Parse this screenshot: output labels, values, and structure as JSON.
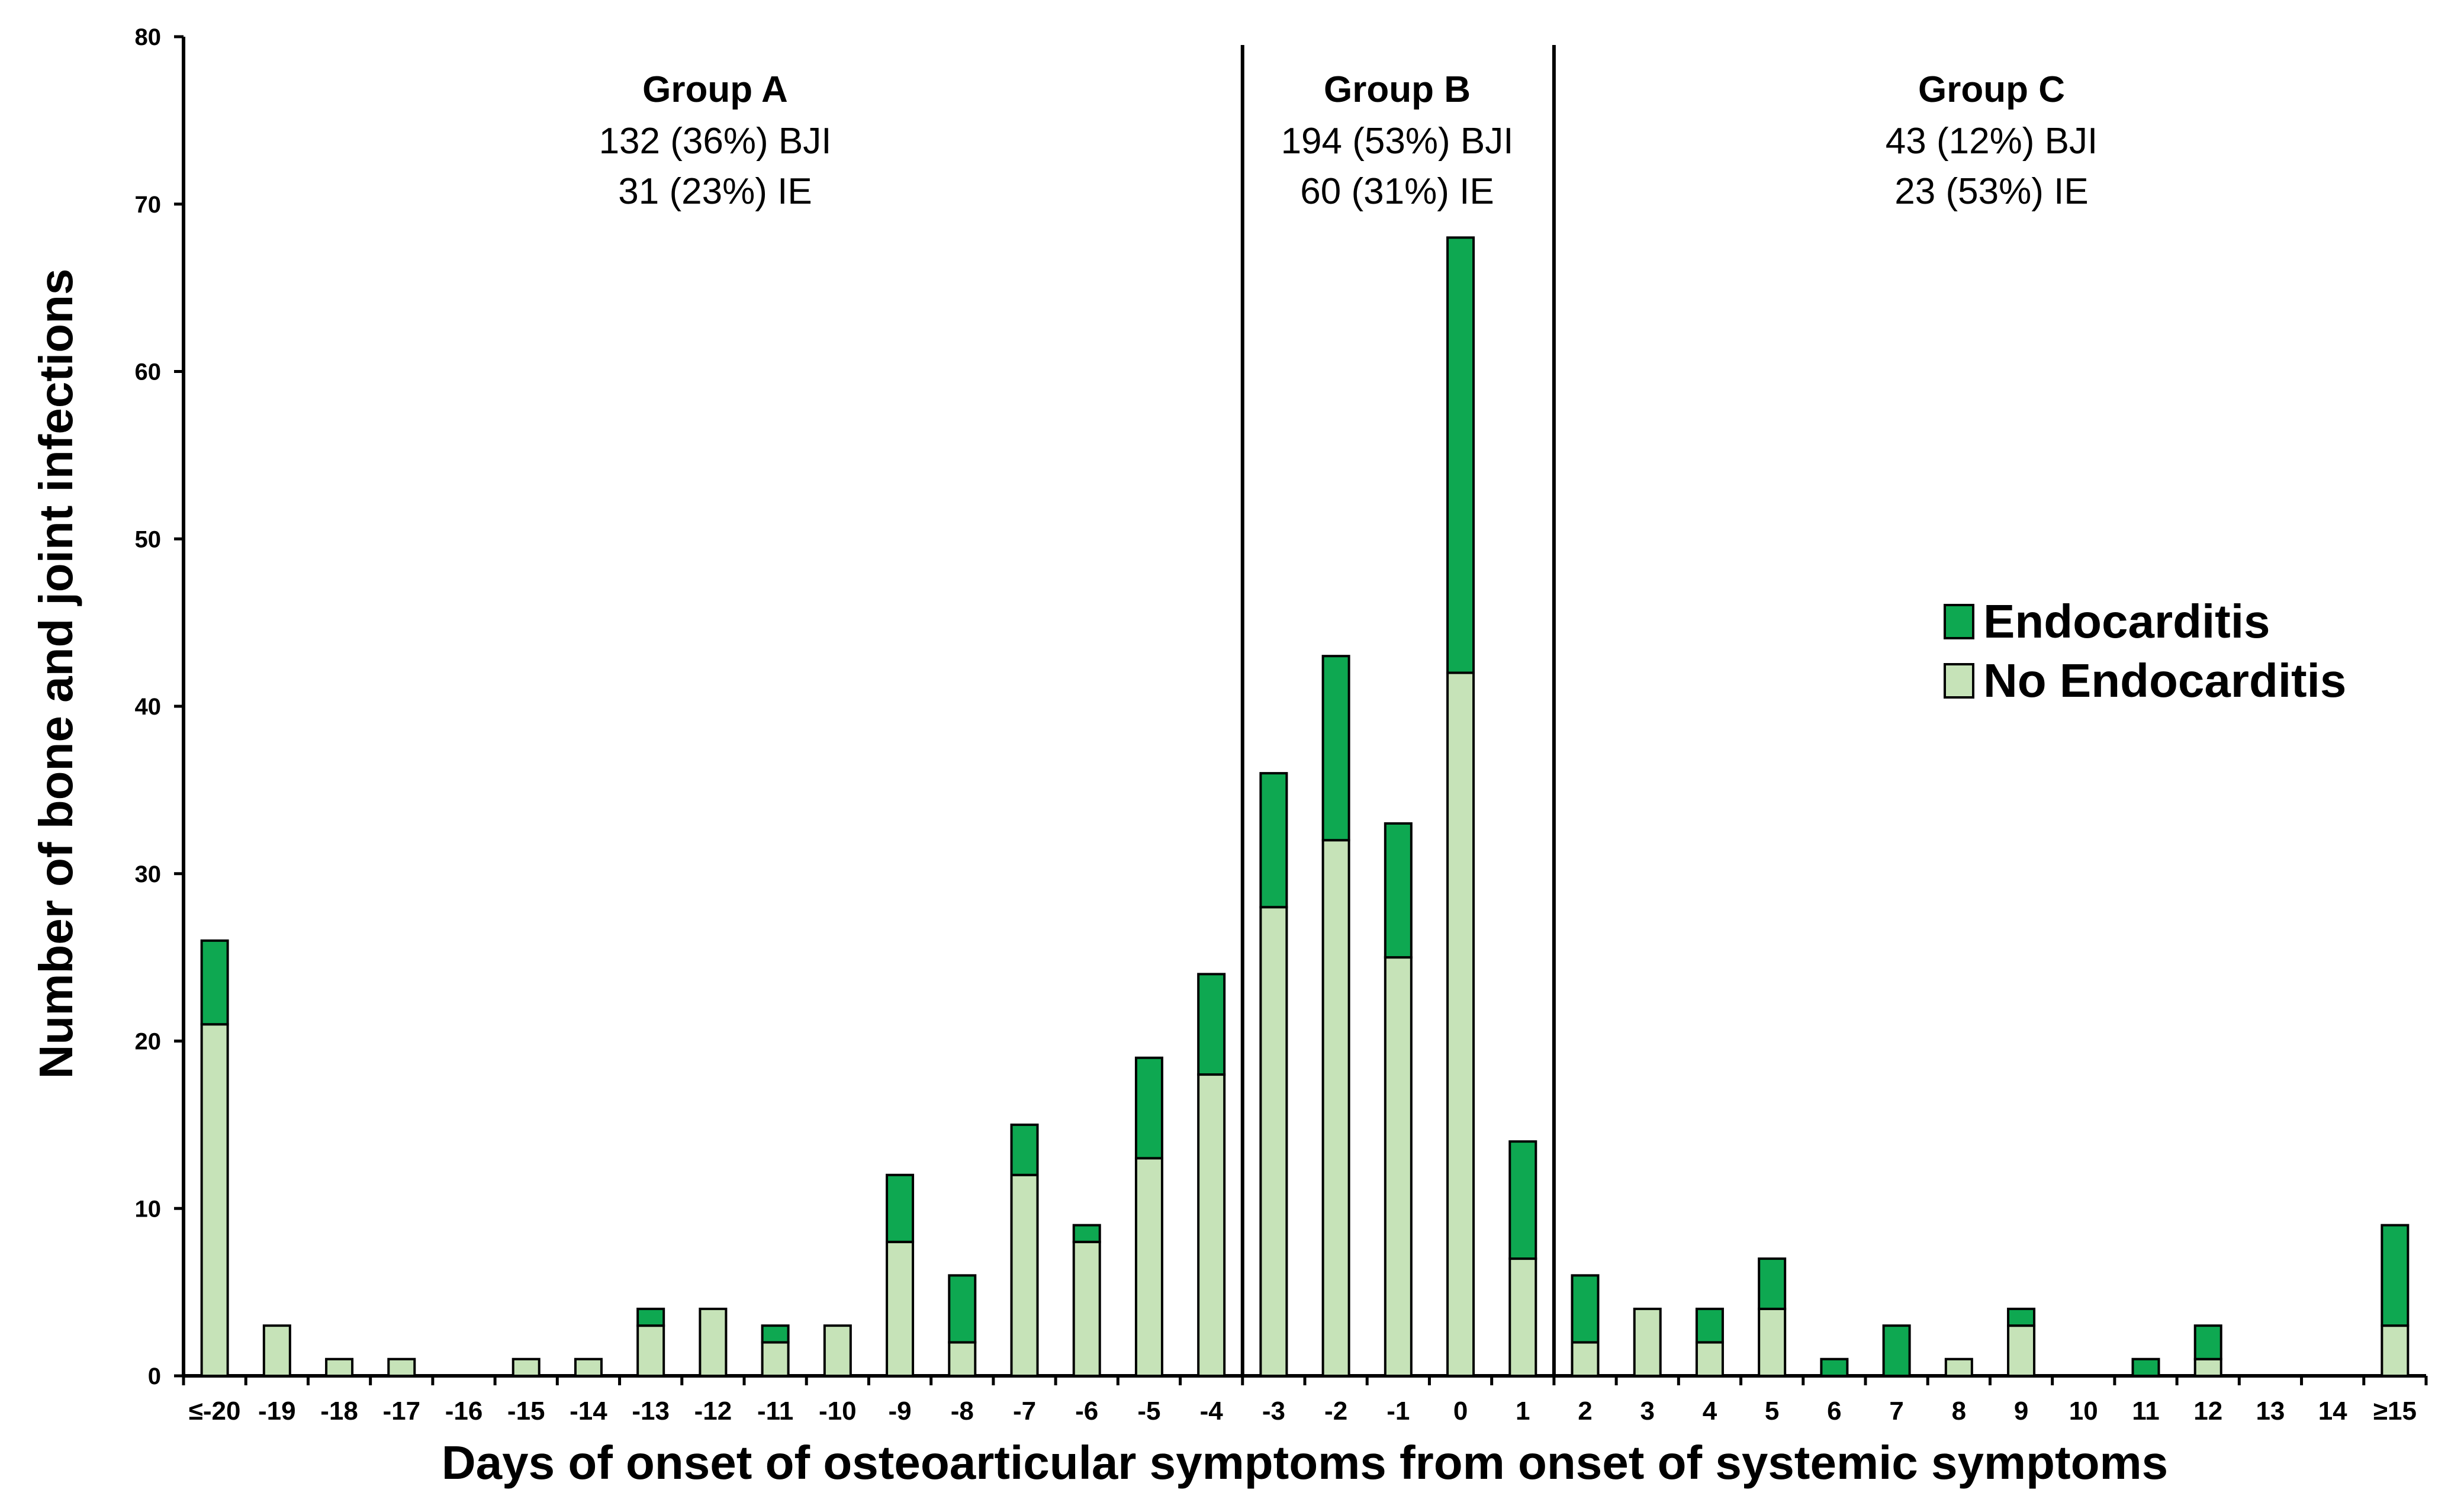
{
  "chart_data": {
    "type": "bar",
    "stacked": true,
    "title": "",
    "xlabel": "Days of onset of osteoarticular symptoms from onset of systemic symptoms",
    "ylabel": "Number of bone and joint infections",
    "ylim": [
      0,
      80
    ],
    "yticks": [
      0,
      10,
      20,
      30,
      40,
      50,
      60,
      70,
      80
    ],
    "categories": [
      "≤-20",
      "-19",
      "-18",
      "-17",
      "-16",
      "-15",
      "-14",
      "-13",
      "-12",
      "-11",
      "-10",
      "-9",
      "-8",
      "-7",
      "-6",
      "-5",
      "-4",
      "-3",
      "-2",
      "-1",
      "0",
      "1",
      "2",
      "3",
      "4",
      "5",
      "6",
      "7",
      "8",
      "9",
      "10",
      "11",
      "12",
      "13",
      "14",
      "≥15"
    ],
    "series": [
      {
        "name": "No Endocarditis",
        "color": "#c6e3b8",
        "values": [
          21,
          3,
          1,
          1,
          0,
          1,
          1,
          3,
          4,
          2,
          3,
          8,
          2,
          12,
          8,
          13,
          18,
          28,
          32,
          25,
          42,
          7,
          2,
          4,
          2,
          4,
          0,
          0,
          1,
          3,
          0,
          0,
          1,
          0,
          0,
          3
        ]
      },
      {
        "name": "Endocarditis",
        "color": "#0ea851",
        "values": [
          5,
          0,
          0,
          0,
          0,
          0,
          0,
          1,
          0,
          1,
          0,
          4,
          4,
          3,
          1,
          6,
          6,
          8,
          11,
          8,
          26,
          7,
          4,
          0,
          2,
          3,
          1,
          3,
          0,
          1,
          0,
          1,
          2,
          0,
          0,
          6
        ]
      }
    ],
    "legend": [
      "Endocarditis",
      "No Endocarditis"
    ],
    "legend_position": "right",
    "group_dividers_after": [
      "-4",
      "1"
    ],
    "groups": [
      {
        "title": "Group A",
        "line1": "132 (36%) BJI",
        "line2": "31 (23%) IE"
      },
      {
        "title": "Group B",
        "line1": "194 (53%) BJI",
        "line2": "60 (31%) IE"
      },
      {
        "title": "Group C",
        "line1": "43 (12%) BJI",
        "line2": "23 (53%) IE"
      }
    ]
  }
}
